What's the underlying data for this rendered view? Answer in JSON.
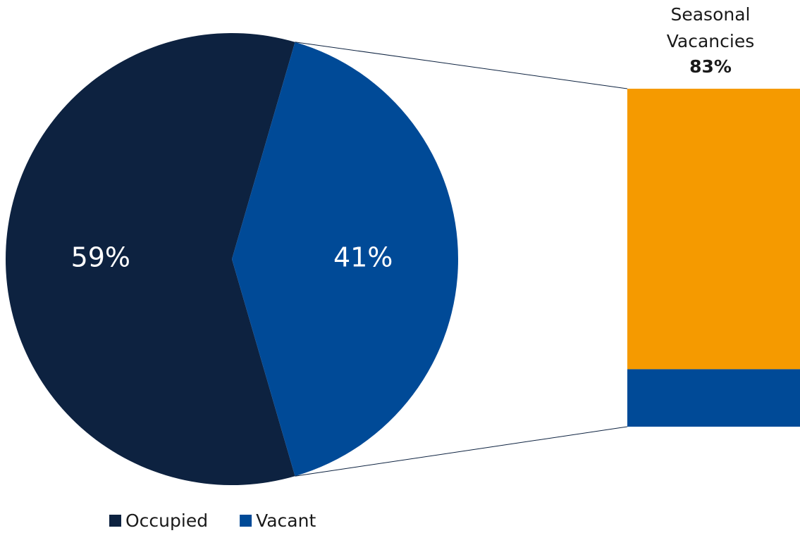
{
  "chart_data": {
    "type": "pie-of-bar",
    "pie": {
      "categories": [
        "Occupied",
        "Vacant"
      ],
      "values": [
        59,
        41
      ],
      "value_labels": [
        "59%",
        "41%"
      ],
      "colors": [
        "#0d2240",
        "#004a97"
      ]
    },
    "bar": {
      "categories": [
        "Seasonal Vacancies",
        null
      ],
      "values": [
        83,
        17
      ],
      "value_labels": [
        "83%",
        null
      ],
      "colors": [
        "#f59a00",
        "#004a97"
      ]
    },
    "legend": true
  }
}
